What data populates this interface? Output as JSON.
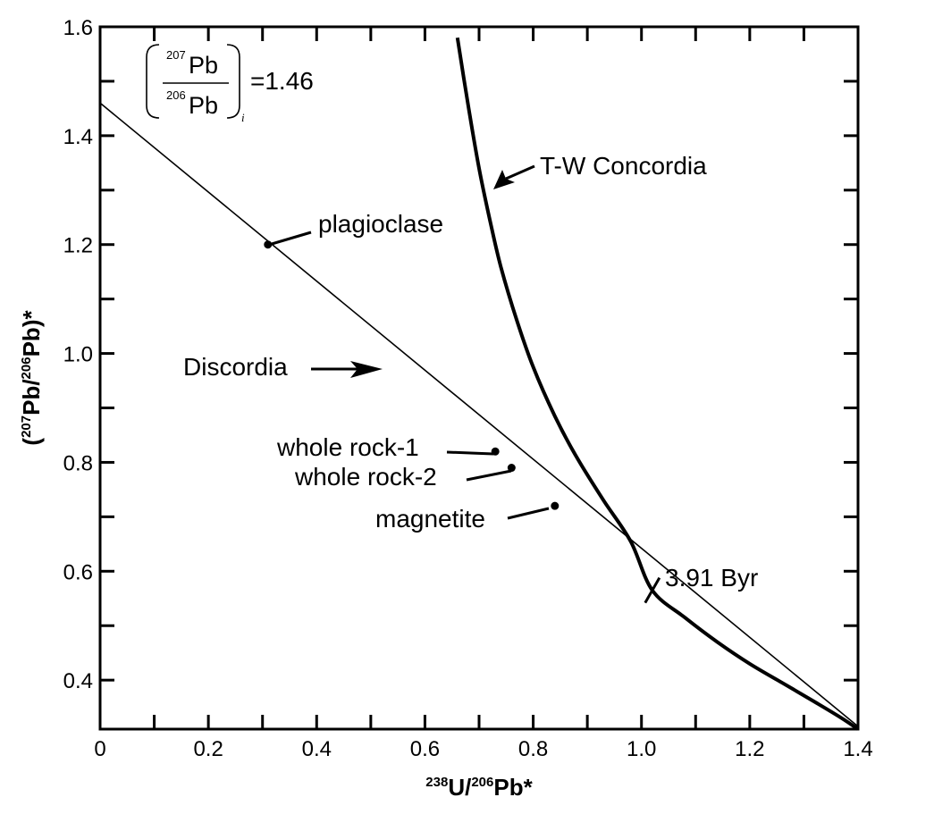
{
  "chart_data": {
    "type": "scatter",
    "xlabel": {
      "sup": "238",
      "main": "U/",
      "sup2": "206",
      "main2": "Pb*"
    },
    "ylabel": {
      "prefix": "(",
      "sup": "207",
      "main": "Pb/",
      "sup2": "206",
      "main2": "Pb)*"
    },
    "xlim": [
      0,
      1.4
    ],
    "ylim": [
      0.31,
      1.6
    ],
    "x_tick_labels": [
      "0",
      "0.2",
      "0.4",
      "0.6",
      "0.8",
      "1.0",
      "1.2",
      "1.4"
    ],
    "x_tick_values": [
      0,
      0.2,
      0.4,
      0.6,
      0.8,
      1.0,
      1.2,
      1.4
    ],
    "x_minor_tick_values": [
      0.1,
      0.3,
      0.5,
      0.7,
      0.9,
      1.1,
      1.3
    ],
    "y_tick_labels": [
      "0.4",
      "0.6",
      "0.8",
      "1.0",
      "1.2",
      "1.4",
      "1.6"
    ],
    "y_tick_values": [
      0.4,
      0.6,
      0.8,
      1.0,
      1.2,
      1.4,
      1.6
    ],
    "y_minor_tick_values": [
      0.5,
      0.7,
      0.9,
      1.1,
      1.3,
      1.5
    ],
    "grid": false,
    "legend": "none",
    "discordia": {
      "label": "Discordia",
      "x": [
        0,
        1.4
      ],
      "y": [
        1.46,
        0.315
      ]
    },
    "concordia": {
      "label": "T-W Concordia",
      "x": [
        0.66,
        0.68,
        0.7,
        0.72,
        0.74,
        0.77,
        0.8,
        0.84,
        0.88,
        0.93,
        0.98,
        1.02,
        1.08,
        1.14,
        1.2,
        1.26,
        1.32,
        1.37,
        1.4
      ],
      "y": [
        1.58,
        1.455,
        1.34,
        1.245,
        1.16,
        1.06,
        0.975,
        0.885,
        0.81,
        0.73,
        0.655,
        0.565,
        0.515,
        0.47,
        0.43,
        0.395,
        0.36,
        0.33,
        0.31
      ]
    },
    "points": [
      {
        "name": "plagioclase",
        "x": 0.31,
        "y": 1.2
      },
      {
        "name": "whole rock-1",
        "x": 0.73,
        "y": 0.82
      },
      {
        "name": "whole rock-2",
        "x": 0.76,
        "y": 0.79
      },
      {
        "name": "magnetite",
        "x": 0.84,
        "y": 0.72
      }
    ],
    "age_marker": {
      "label": "3.91 Byr",
      "x": 1.02,
      "y": 0.565
    },
    "initial_ratio": {
      "numerator_sup": "207",
      "numerator": "Pb",
      "denominator_sup": "206",
      "denominator": "Pb",
      "subscript": "i",
      "value": "=1.46"
    }
  }
}
